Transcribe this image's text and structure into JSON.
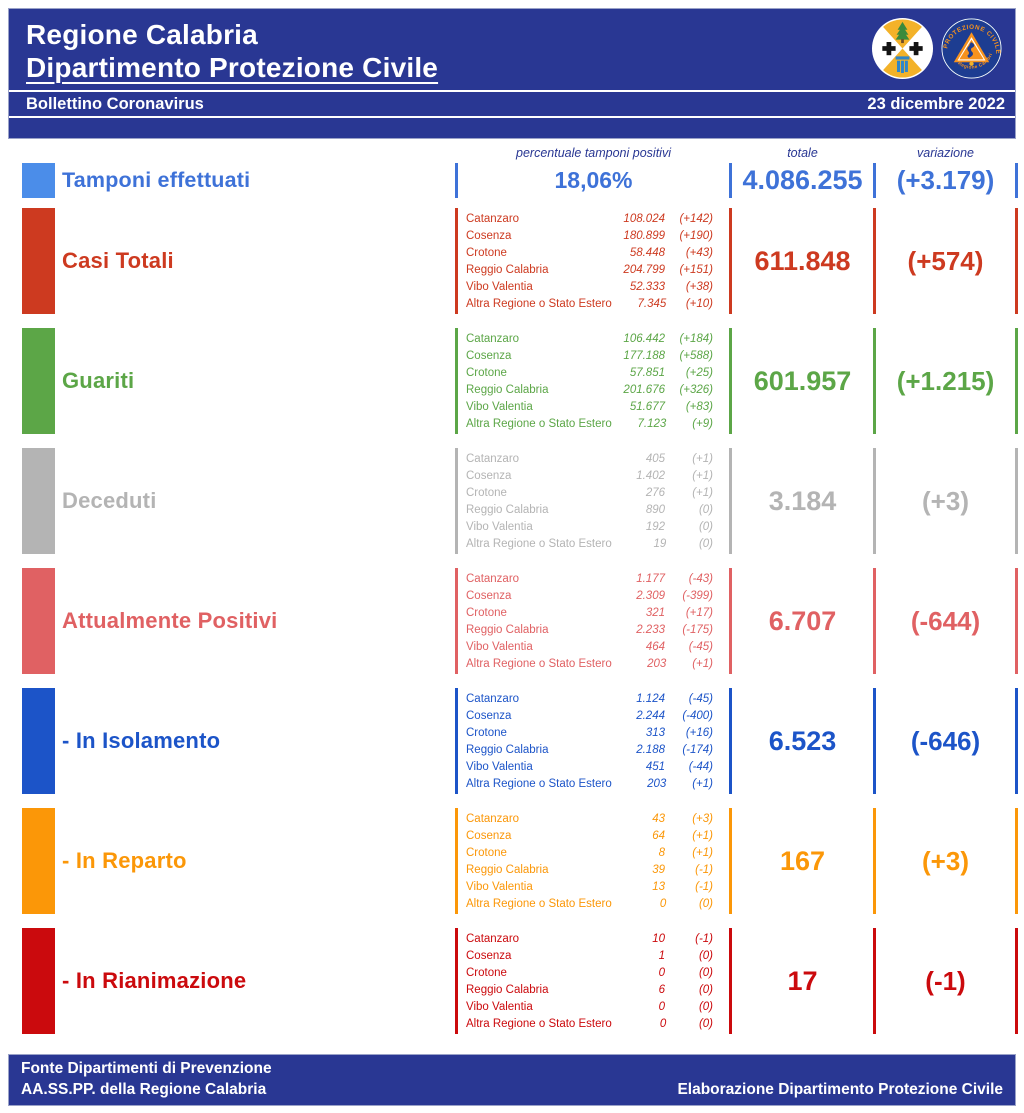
{
  "header": {
    "title1": "Regione Calabria",
    "title2": "Dipartimento Protezione Civile",
    "bulletin": "Bollettino Coronavirus",
    "date": "23 dicembre 2022"
  },
  "logos": {
    "left": "regione-calabria-coat-of-arms",
    "right": "protezione-civile-emblem"
  },
  "columns": {
    "percent_header": "percentuale tamponi positivi",
    "total_header": "totale",
    "variation_header": "variazione"
  },
  "colors": {
    "brand_blue": "#293793",
    "tamponi_text": "#3e72d8",
    "tamponi_swatch": "#4b8de9"
  },
  "tamponi": {
    "label": "Tamponi effettuati",
    "percent": "18,06%",
    "total": "4.086.255",
    "variation": "(+3.179)"
  },
  "rows": [
    {
      "label": "Casi Totali",
      "color": "#cd3a20",
      "total": "611.848",
      "variation": "(+574)",
      "provinces": [
        {
          "name": "Catanzaro",
          "value": "108.024",
          "variation": "(+142)"
        },
        {
          "name": "Cosenza",
          "value": "180.899",
          "variation": "(+190)"
        },
        {
          "name": "Crotone",
          "value": "58.448",
          "variation": "(+43)"
        },
        {
          "name": "Reggio Calabria",
          "value": "204.799",
          "variation": "(+151)"
        },
        {
          "name": "Vibo Valentia",
          "value": "52.333",
          "variation": "(+38)"
        },
        {
          "name": "Altra Regione o Stato Estero",
          "value": "7.345",
          "variation": "(+10)"
        }
      ]
    },
    {
      "label": "Guariti",
      "color": "#5ca647",
      "total": "601.957",
      "variation": "(+1.215)",
      "provinces": [
        {
          "name": "Catanzaro",
          "value": "106.442",
          "variation": "(+184)"
        },
        {
          "name": "Cosenza",
          "value": "177.188",
          "variation": "(+588)"
        },
        {
          "name": "Crotone",
          "value": "57.851",
          "variation": "(+25)"
        },
        {
          "name": "Reggio Calabria",
          "value": "201.676",
          "variation": "(+326)"
        },
        {
          "name": "Vibo Valentia",
          "value": "51.677",
          "variation": "(+83)"
        },
        {
          "name": "Altra Regione o Stato Estero",
          "value": "7.123",
          "variation": "(+9)"
        }
      ]
    },
    {
      "label": "Deceduti",
      "color": "#b4b4b4",
      "total": "3.184",
      "variation": "(+3)",
      "provinces": [
        {
          "name": "Catanzaro",
          "value": "405",
          "variation": "(+1)"
        },
        {
          "name": "Cosenza",
          "value": "1.402",
          "variation": "(+1)"
        },
        {
          "name": "Crotone",
          "value": "276",
          "variation": "(+1)"
        },
        {
          "name": "Reggio Calabria",
          "value": "890",
          "variation": "(0)"
        },
        {
          "name": "Vibo Valentia",
          "value": "192",
          "variation": "(0)"
        },
        {
          "name": "Altra Regione o Stato Estero",
          "value": "19",
          "variation": "(0)"
        }
      ]
    },
    {
      "label": "Attualmente Positivi",
      "color": "#e06163",
      "total": "6.707",
      "variation": "(-644)",
      "provinces": [
        {
          "name": "Catanzaro",
          "value": "1.177",
          "variation": "(-43)"
        },
        {
          "name": "Cosenza",
          "value": "2.309",
          "variation": "(-399)"
        },
        {
          "name": "Crotone",
          "value": "321",
          "variation": "(+17)"
        },
        {
          "name": "Reggio Calabria",
          "value": "2.233",
          "variation": "(-175)"
        },
        {
          "name": "Vibo Valentia",
          "value": "464",
          "variation": "(-45)"
        },
        {
          "name": "Altra Regione o Stato Estero",
          "value": "203",
          "variation": "(+1)"
        }
      ]
    },
    {
      "label": "- In Isolamento",
      "color": "#1c54c8",
      "total": "6.523",
      "variation": "(-646)",
      "provinces": [
        {
          "name": "Catanzaro",
          "value": "1.124",
          "variation": "(-45)"
        },
        {
          "name": "Cosenza",
          "value": "2.244",
          "variation": "(-400)"
        },
        {
          "name": "Crotone",
          "value": "313",
          "variation": "(+16)"
        },
        {
          "name": "Reggio Calabria",
          "value": "2.188",
          "variation": "(-174)"
        },
        {
          "name": "Vibo Valentia",
          "value": "451",
          "variation": "(-44)"
        },
        {
          "name": "Altra Regione o Stato Estero",
          "value": "203",
          "variation": "(+1)"
        }
      ]
    },
    {
      "label": "- In Reparto",
      "color": "#fb9708",
      "total": "167",
      "variation": "(+3)",
      "provinces": [
        {
          "name": "Catanzaro",
          "value": "43",
          "variation": "(+3)"
        },
        {
          "name": "Cosenza",
          "value": "64",
          "variation": "(+1)"
        },
        {
          "name": "Crotone",
          "value": "8",
          "variation": "(+1)"
        },
        {
          "name": "Reggio Calabria",
          "value": "39",
          "variation": "(-1)"
        },
        {
          "name": "Vibo Valentia",
          "value": "13",
          "variation": "(-1)"
        },
        {
          "name": "Altra Regione o Stato Estero",
          "value": "0",
          "variation": "(0)"
        }
      ]
    },
    {
      "label": "- In Rianimazione",
      "color": "#cb0a0d",
      "total": "17",
      "variation": "(-1)",
      "provinces": [
        {
          "name": "Catanzaro",
          "value": "10",
          "variation": "(-1)"
        },
        {
          "name": "Cosenza",
          "value": "1",
          "variation": "(0)"
        },
        {
          "name": "Crotone",
          "value": "0",
          "variation": "(0)"
        },
        {
          "name": "Reggio Calabria",
          "value": "6",
          "variation": "(0)"
        },
        {
          "name": "Vibo Valentia",
          "value": "0",
          "variation": "(0)"
        },
        {
          "name": "Altra Regione o Stato Estero",
          "value": "0",
          "variation": "(0)"
        }
      ]
    }
  ],
  "footer": {
    "line1": "Fonte Dipartimenti di Prevenzione",
    "line2_left": "AA.SS.PP.  della Regione Calabria",
    "line2_right": "Elaborazione Dipartimento Protezione Civile"
  }
}
